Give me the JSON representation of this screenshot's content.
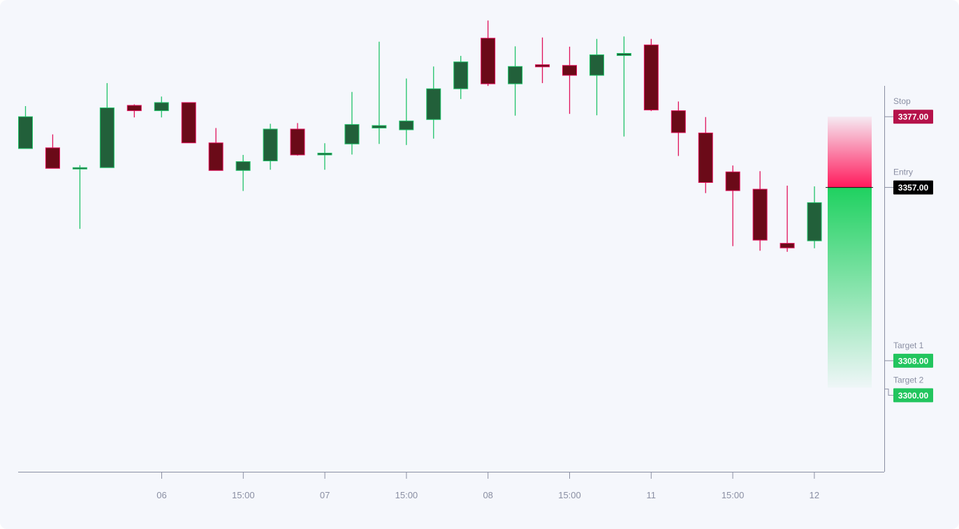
{
  "chart_data": {
    "type": "candlestick",
    "x_tick_labels": [
      "06",
      "15:00",
      "07",
      "15:00",
      "08",
      "15:00",
      "11",
      "15:00",
      "12"
    ],
    "ylim": [
      3276.6,
      3410.0
    ],
    "candles": [
      {
        "open": 3368.0,
        "high": 3380.0,
        "low": 3368.0,
        "close": 3377.0
      },
      {
        "open": 3368.2,
        "high": 3372.0,
        "low": 3362.4,
        "close": 3362.4
      },
      {
        "open": 3362.4,
        "high": 3363.3,
        "low": 3345.3,
        "close": 3362.6
      },
      {
        "open": 3362.6,
        "high": 3386.5,
        "low": 3362.6,
        "close": 3379.5
      },
      {
        "open": 3380.2,
        "high": 3380.5,
        "low": 3376.8,
        "close": 3378.7
      },
      {
        "open": 3378.7,
        "high": 3382.7,
        "low": 3376.8,
        "close": 3381.0
      },
      {
        "open": 3381.0,
        "high": 3381.0,
        "low": 3369.6,
        "close": 3369.6
      },
      {
        "open": 3369.6,
        "high": 3373.8,
        "low": 3361.8,
        "close": 3361.8
      },
      {
        "open": 3361.8,
        "high": 3366.2,
        "low": 3356.0,
        "close": 3364.3
      },
      {
        "open": 3364.5,
        "high": 3375.0,
        "low": 3362.0,
        "close": 3373.5
      },
      {
        "open": 3373.5,
        "high": 3375.2,
        "low": 3366.0,
        "close": 3366.2
      },
      {
        "open": 3366.2,
        "high": 3369.5,
        "low": 3362.0,
        "close": 3366.7
      },
      {
        "open": 3369.3,
        "high": 3384.0,
        "low": 3366.3,
        "close": 3374.8
      },
      {
        "open": 3373.8,
        "high": 3398.2,
        "low": 3369.3,
        "close": 3374.5
      },
      {
        "open": 3373.3,
        "high": 3387.8,
        "low": 3369.0,
        "close": 3375.8
      },
      {
        "open": 3376.2,
        "high": 3391.2,
        "low": 3370.8,
        "close": 3384.9
      },
      {
        "open": 3384.9,
        "high": 3394.2,
        "low": 3382.0,
        "close": 3392.5
      },
      {
        "open": 3399.2,
        "high": 3404.2,
        "low": 3385.7,
        "close": 3386.3
      },
      {
        "open": 3386.3,
        "high": 3396.9,
        "low": 3377.3,
        "close": 3391.2
      },
      {
        "open": 3391.7,
        "high": 3399.4,
        "low": 3386.5,
        "close": 3391.1
      },
      {
        "open": 3391.5,
        "high": 3396.8,
        "low": 3377.8,
        "close": 3388.7
      },
      {
        "open": 3388.7,
        "high": 3399.0,
        "low": 3377.4,
        "close": 3394.5
      },
      {
        "open": 3394.3,
        "high": 3399.7,
        "low": 3371.4,
        "close": 3394.9
      },
      {
        "open": 3397.3,
        "high": 3399.0,
        "low": 3378.6,
        "close": 3378.9
      },
      {
        "open": 3378.7,
        "high": 3381.3,
        "low": 3365.9,
        "close": 3372.5
      },
      {
        "open": 3372.4,
        "high": 3376.9,
        "low": 3355.4,
        "close": 3358.4
      },
      {
        "open": 3361.4,
        "high": 3363.2,
        "low": 3340.4,
        "close": 3356.1
      },
      {
        "open": 3356.5,
        "high": 3361.6,
        "low": 3339.1,
        "close": 3342.1
      },
      {
        "open": 3341.2,
        "high": 3357.5,
        "low": 3338.8,
        "close": 3339.9
      },
      {
        "open": 3341.9,
        "high": 3357.3,
        "low": 3339.8,
        "close": 3352.7
      }
    ],
    "levels": {
      "stop": {
        "caption": "Stop",
        "price": 3377.0,
        "badge": "3377.00",
        "color": "#b5124a"
      },
      "entry": {
        "caption": "Entry",
        "price": 3357.0,
        "badge": "3357.00",
        "color": "#000000"
      },
      "target1": {
        "caption": "Target 1",
        "price": 3308.0,
        "badge": "3308.00",
        "color": "#22c55e"
      },
      "target2": {
        "caption": "Target 2",
        "price": 3300.0,
        "badge": "3300.00",
        "color": "#22c55e"
      }
    },
    "colors": {
      "up_body": "#22603a",
      "up_border": "#21c36a",
      "down_body": "#6b0a18",
      "down_border": "#e0125b",
      "axis": "#8a8fa3",
      "risk_zone": "#ff1a5c",
      "reward_zone": "#1fd160"
    }
  }
}
